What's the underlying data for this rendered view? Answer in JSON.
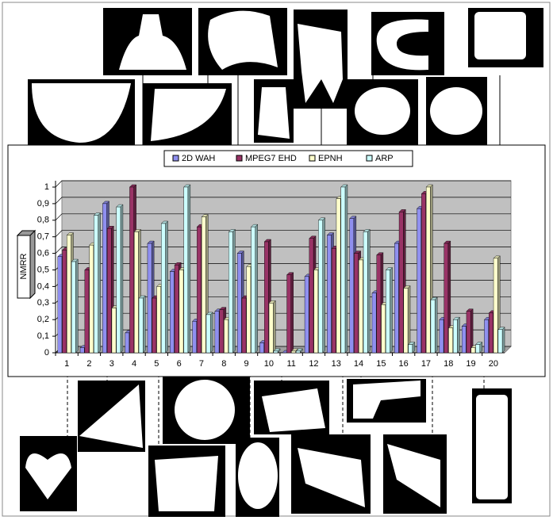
{
  "chart_data": {
    "type": "bar",
    "categories": [
      "1",
      "2",
      "3",
      "4",
      "5",
      "6",
      "7",
      "8",
      "9",
      "10",
      "11",
      "12",
      "13",
      "14",
      "15",
      "16",
      "17",
      "18",
      "19",
      "20"
    ],
    "y_label": "NMRR",
    "series": [
      {
        "name": "2D WAH",
        "color": "#8f8fef",
        "values": [
          0.58,
          0.03,
          0.9,
          0.12,
          0.66,
          0.49,
          0.19,
          0.25,
          0.6,
          0.06,
          0.0,
          0.46,
          0.71,
          0.81,
          0.36,
          0.66,
          0.87,
          0.2,
          0.16,
          0.2
        ]
      },
      {
        "name": "MPEG7 EHD",
        "color": "#993366",
        "values": [
          0.62,
          0.5,
          0.75,
          1.0,
          0.33,
          0.53,
          0.76,
          0.26,
          0.33,
          0.67,
          0.47,
          0.69,
          0.63,
          0.6,
          0.59,
          0.85,
          0.96,
          0.66,
          0.25,
          0.24
        ]
      },
      {
        "name": "EPNH",
        "color": "#ffffcc",
        "values": [
          0.71,
          0.65,
          0.27,
          0.73,
          0.4,
          0.5,
          0.82,
          0.2,
          0.52,
          0.3,
          0.01,
          0.5,
          0.93,
          0.56,
          0.29,
          0.39,
          1.0,
          0.15,
          0.03,
          0.57
        ]
      },
      {
        "name": "ARP",
        "color": "#ccffff",
        "values": [
          0.55,
          0.83,
          0.88,
          0.33,
          0.78,
          1.0,
          0.23,
          0.73,
          0.76,
          0.01,
          0.01,
          0.8,
          1.0,
          0.73,
          0.5,
          0.05,
          0.32,
          0.2,
          0.05,
          0.14
        ]
      }
    ],
    "ylim": [
      0,
      1
    ],
    "yticks": [
      0,
      {
        "value": 0.1,
        "label": "0,1"
      },
      {
        "value": 0.2,
        "label": "0,2"
      },
      {
        "value": 0.3,
        "label": "0,3"
      },
      {
        "value": 0.4,
        "label": "0,4"
      },
      {
        "value": 0.5,
        "label": "0,5"
      },
      {
        "value": 0.6,
        "label": "0,6"
      },
      {
        "value": 0.7,
        "label": "0,7"
      },
      {
        "value": 0.8,
        "label": "0,8"
      },
      {
        "value": 0.9,
        "label": "0,9"
      },
      1
    ],
    "grid": true
  }
}
